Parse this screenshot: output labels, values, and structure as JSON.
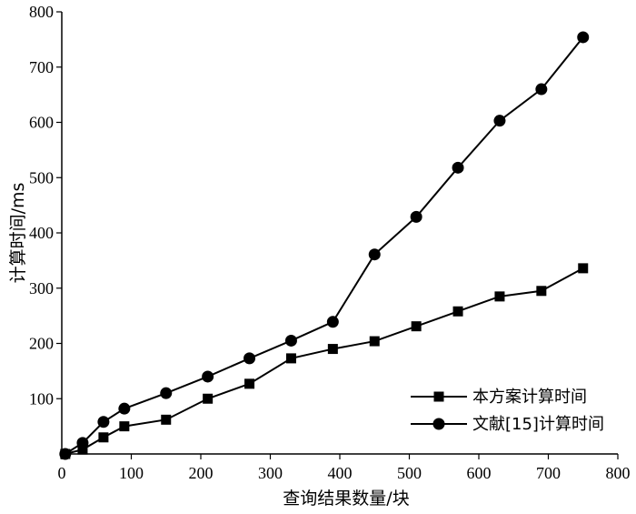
{
  "chart_data": {
    "type": "line",
    "xlabel": "查询结果数量/块",
    "ylabel": "计算时间/ms",
    "xlim": [
      0,
      800
    ],
    "ylim": [
      0,
      800
    ],
    "xticks": [
      "0",
      "100",
      "200",
      "300",
      "400",
      "500",
      "600",
      "700",
      "800"
    ],
    "yticks": [
      "100",
      "200",
      "300",
      "400",
      "500",
      "600",
      "700",
      "800"
    ],
    "grid": false,
    "legend_position": "bottom-right",
    "series": [
      {
        "name": "本方案计算时间",
        "marker": "square",
        "x": [
          5,
          30,
          60,
          90,
          150,
          210,
          270,
          330,
          390,
          450,
          510,
          570,
          630,
          690,
          750
        ],
        "y": [
          0,
          8,
          30,
          50,
          62,
          100,
          127,
          173,
          190,
          204,
          231,
          258,
          285,
          295,
          336
        ]
      },
      {
        "name": "文献[15]计算时间",
        "marker": "circle",
        "x": [
          5,
          30,
          60,
          90,
          150,
          210,
          270,
          330,
          390,
          450,
          510,
          570,
          630,
          690,
          750
        ],
        "y": [
          0,
          20,
          58,
          82,
          110,
          140,
          173,
          205,
          239,
          361,
          429,
          518,
          603,
          660,
          754
        ]
      }
    ]
  }
}
